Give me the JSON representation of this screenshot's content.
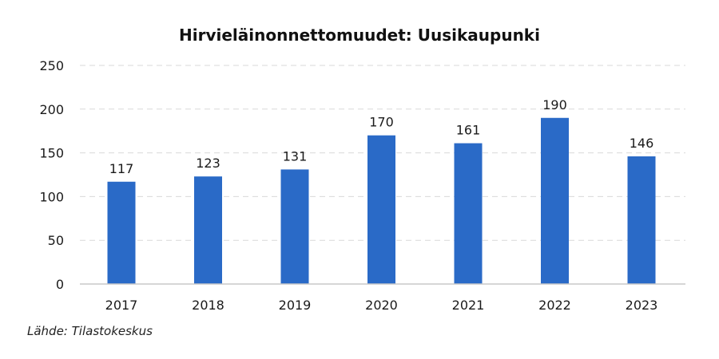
{
  "title": "Hirvieläinonnettomuudet: Uusikaupunki",
  "source": "Lähde: Tilastokeskus",
  "colors": {
    "bar": "#2a6ac7",
    "grid": "#d9d9d9",
    "axis": "#c8c8c8"
  },
  "chart_data": {
    "type": "bar",
    "title": "Hirvieläinonnettomuudet: Uusikaupunki",
    "categories": [
      "2017",
      "2018",
      "2019",
      "2020",
      "2021",
      "2022",
      "2023"
    ],
    "values": [
      117,
      123,
      131,
      170,
      161,
      190,
      146
    ],
    "data_labels": [
      "117",
      "123",
      "131",
      "170",
      "161",
      "190",
      "146"
    ],
    "ylim": [
      0,
      250
    ],
    "y_ticks": [
      0,
      50,
      100,
      150,
      200,
      250
    ],
    "y_tick_labels": [
      "0",
      "50",
      "100",
      "150",
      "200",
      "250"
    ],
    "grid": "horizontal dashed",
    "legend": "none"
  }
}
